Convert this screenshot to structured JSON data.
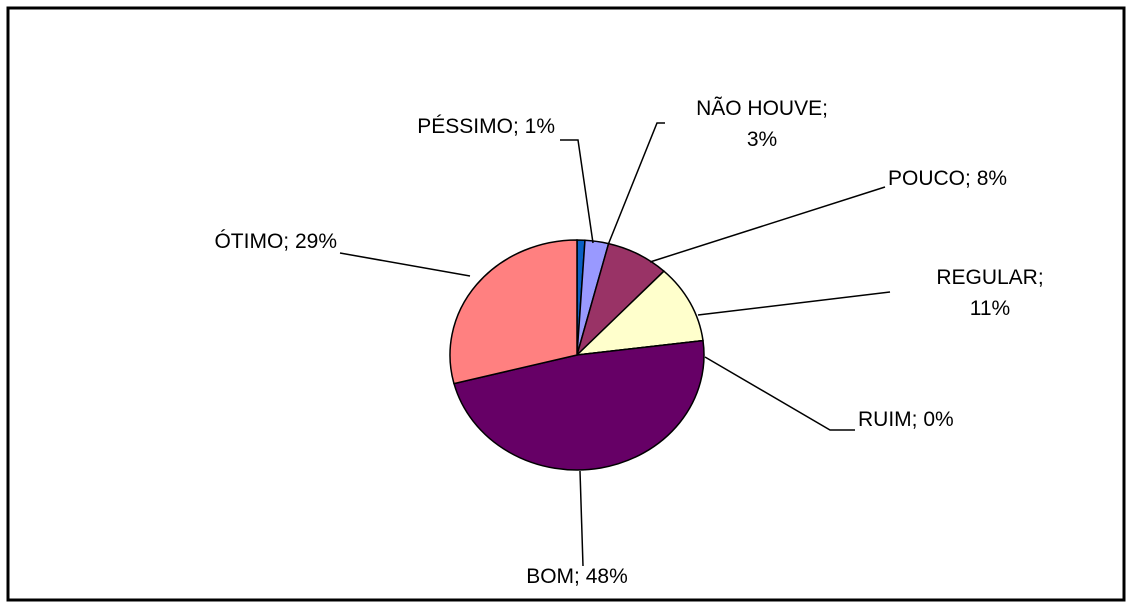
{
  "chart_data": {
    "type": "pie",
    "categories": [
      "PÉSSIMO;",
      "NÃO HOUVE;",
      "POUCO;",
      "REGULAR;",
      "RUIM;",
      "BOM;",
      "ÓTIMO;"
    ],
    "values": [
      1,
      3,
      8,
      11,
      0,
      48,
      29
    ],
    "value_labels": [
      "1%",
      "3%",
      "8%",
      "11%",
      "0%",
      "48%",
      "29%"
    ],
    "colors": [
      "#0a5fc4",
      "#9999ff",
      "#993366",
      "#ffffcc",
      "#ffffff",
      "#660066",
      "#ff8080"
    ]
  }
}
